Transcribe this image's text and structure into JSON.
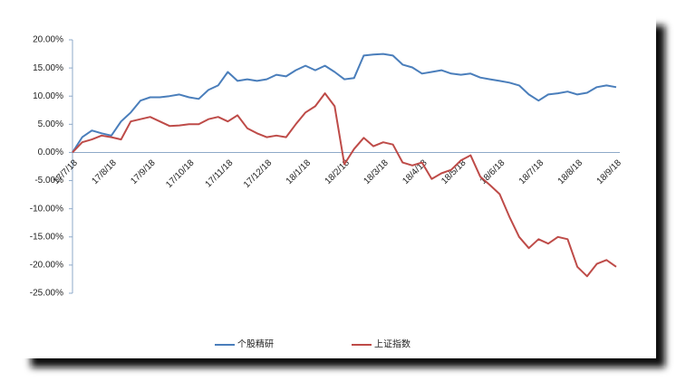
{
  "chart_data": {
    "type": "line",
    "categories": [
      "17/7/18",
      null,
      null,
      null,
      "17/8/18",
      null,
      null,
      null,
      "17/9/18",
      null,
      null,
      null,
      "17/10/18",
      null,
      null,
      null,
      "17/11/18",
      null,
      null,
      null,
      "17/12/18",
      null,
      null,
      null,
      "18/1/18",
      null,
      null,
      null,
      "18/2/18",
      null,
      null,
      null,
      "18/3/18",
      null,
      null,
      null,
      "18/4/18",
      null,
      null,
      null,
      "18/5/18",
      null,
      null,
      null,
      "18/6/18",
      null,
      null,
      null,
      "18/7/18",
      null,
      null,
      null,
      "18/8/18",
      null,
      null,
      null,
      "18/9/18"
    ],
    "series": [
      {
        "name": "个股精研",
        "color": "#4a7ebb",
        "values": [
          0,
          2.7,
          3.9,
          3.4,
          3.0,
          5.5,
          7.1,
          9.2,
          9.8,
          9.8,
          10.0,
          10.3,
          9.8,
          9.5,
          11.1,
          11.9,
          14.3,
          12.7,
          13.0,
          12.7,
          13.0,
          13.8,
          13.5,
          14.6,
          15.4,
          14.6,
          15.4,
          14.3,
          13.0,
          13.2,
          17.2,
          17.4,
          17.5,
          17.2,
          15.6,
          15.1,
          14.0,
          14.3,
          14.6,
          14.0,
          13.8,
          14.0,
          13.3,
          13.0,
          12.7,
          12.4,
          11.9,
          10.3,
          9.2,
          10.3,
          10.5,
          10.8,
          10.3,
          10.6,
          11.6,
          11.9,
          11.6
        ]
      },
      {
        "name": "上证指数",
        "color": "#be4b48",
        "values": [
          0,
          1.8,
          2.3,
          3.0,
          2.7,
          2.3,
          5.5,
          5.9,
          6.3,
          5.5,
          4.7,
          4.8,
          5.0,
          5.0,
          5.9,
          6.3,
          5.5,
          6.6,
          4.3,
          3.4,
          2.7,
          3.0,
          2.7,
          5.0,
          7.1,
          8.2,
          10.5,
          8.2,
          -2.1,
          0.6,
          2.6,
          1.1,
          1.8,
          1.4,
          -1.8,
          -2.3,
          -1.8,
          -4.7,
          -3.7,
          -3.1,
          -1.4,
          -0.5,
          -4.3,
          -5.8,
          -7.4,
          -11.4,
          -15.0,
          -17.0,
          -15.4,
          -16.2,
          -15.0,
          -15.4,
          -20.3,
          -22.0,
          -19.8,
          -19.1,
          -20.3
        ]
      }
    ],
    "ylim": [
      -25,
      20
    ],
    "yticks": [
      {
        "value": -25,
        "label": "-25.00%"
      },
      {
        "value": -20,
        "label": "-20.00%"
      },
      {
        "value": -15,
        "label": "-15.00%"
      },
      {
        "value": -10,
        "label": "-10.00%"
      },
      {
        "value": -5,
        "label": "-5.00%"
      },
      {
        "value": 0,
        "label": "0.00%"
      },
      {
        "value": 5,
        "label": "5.00%"
      },
      {
        "value": 10,
        "label": "10.00%"
      },
      {
        "value": 15,
        "label": "15.00%"
      },
      {
        "value": 20,
        "label": "20.00%"
      }
    ],
    "grid": false,
    "legend": "bottom"
  }
}
